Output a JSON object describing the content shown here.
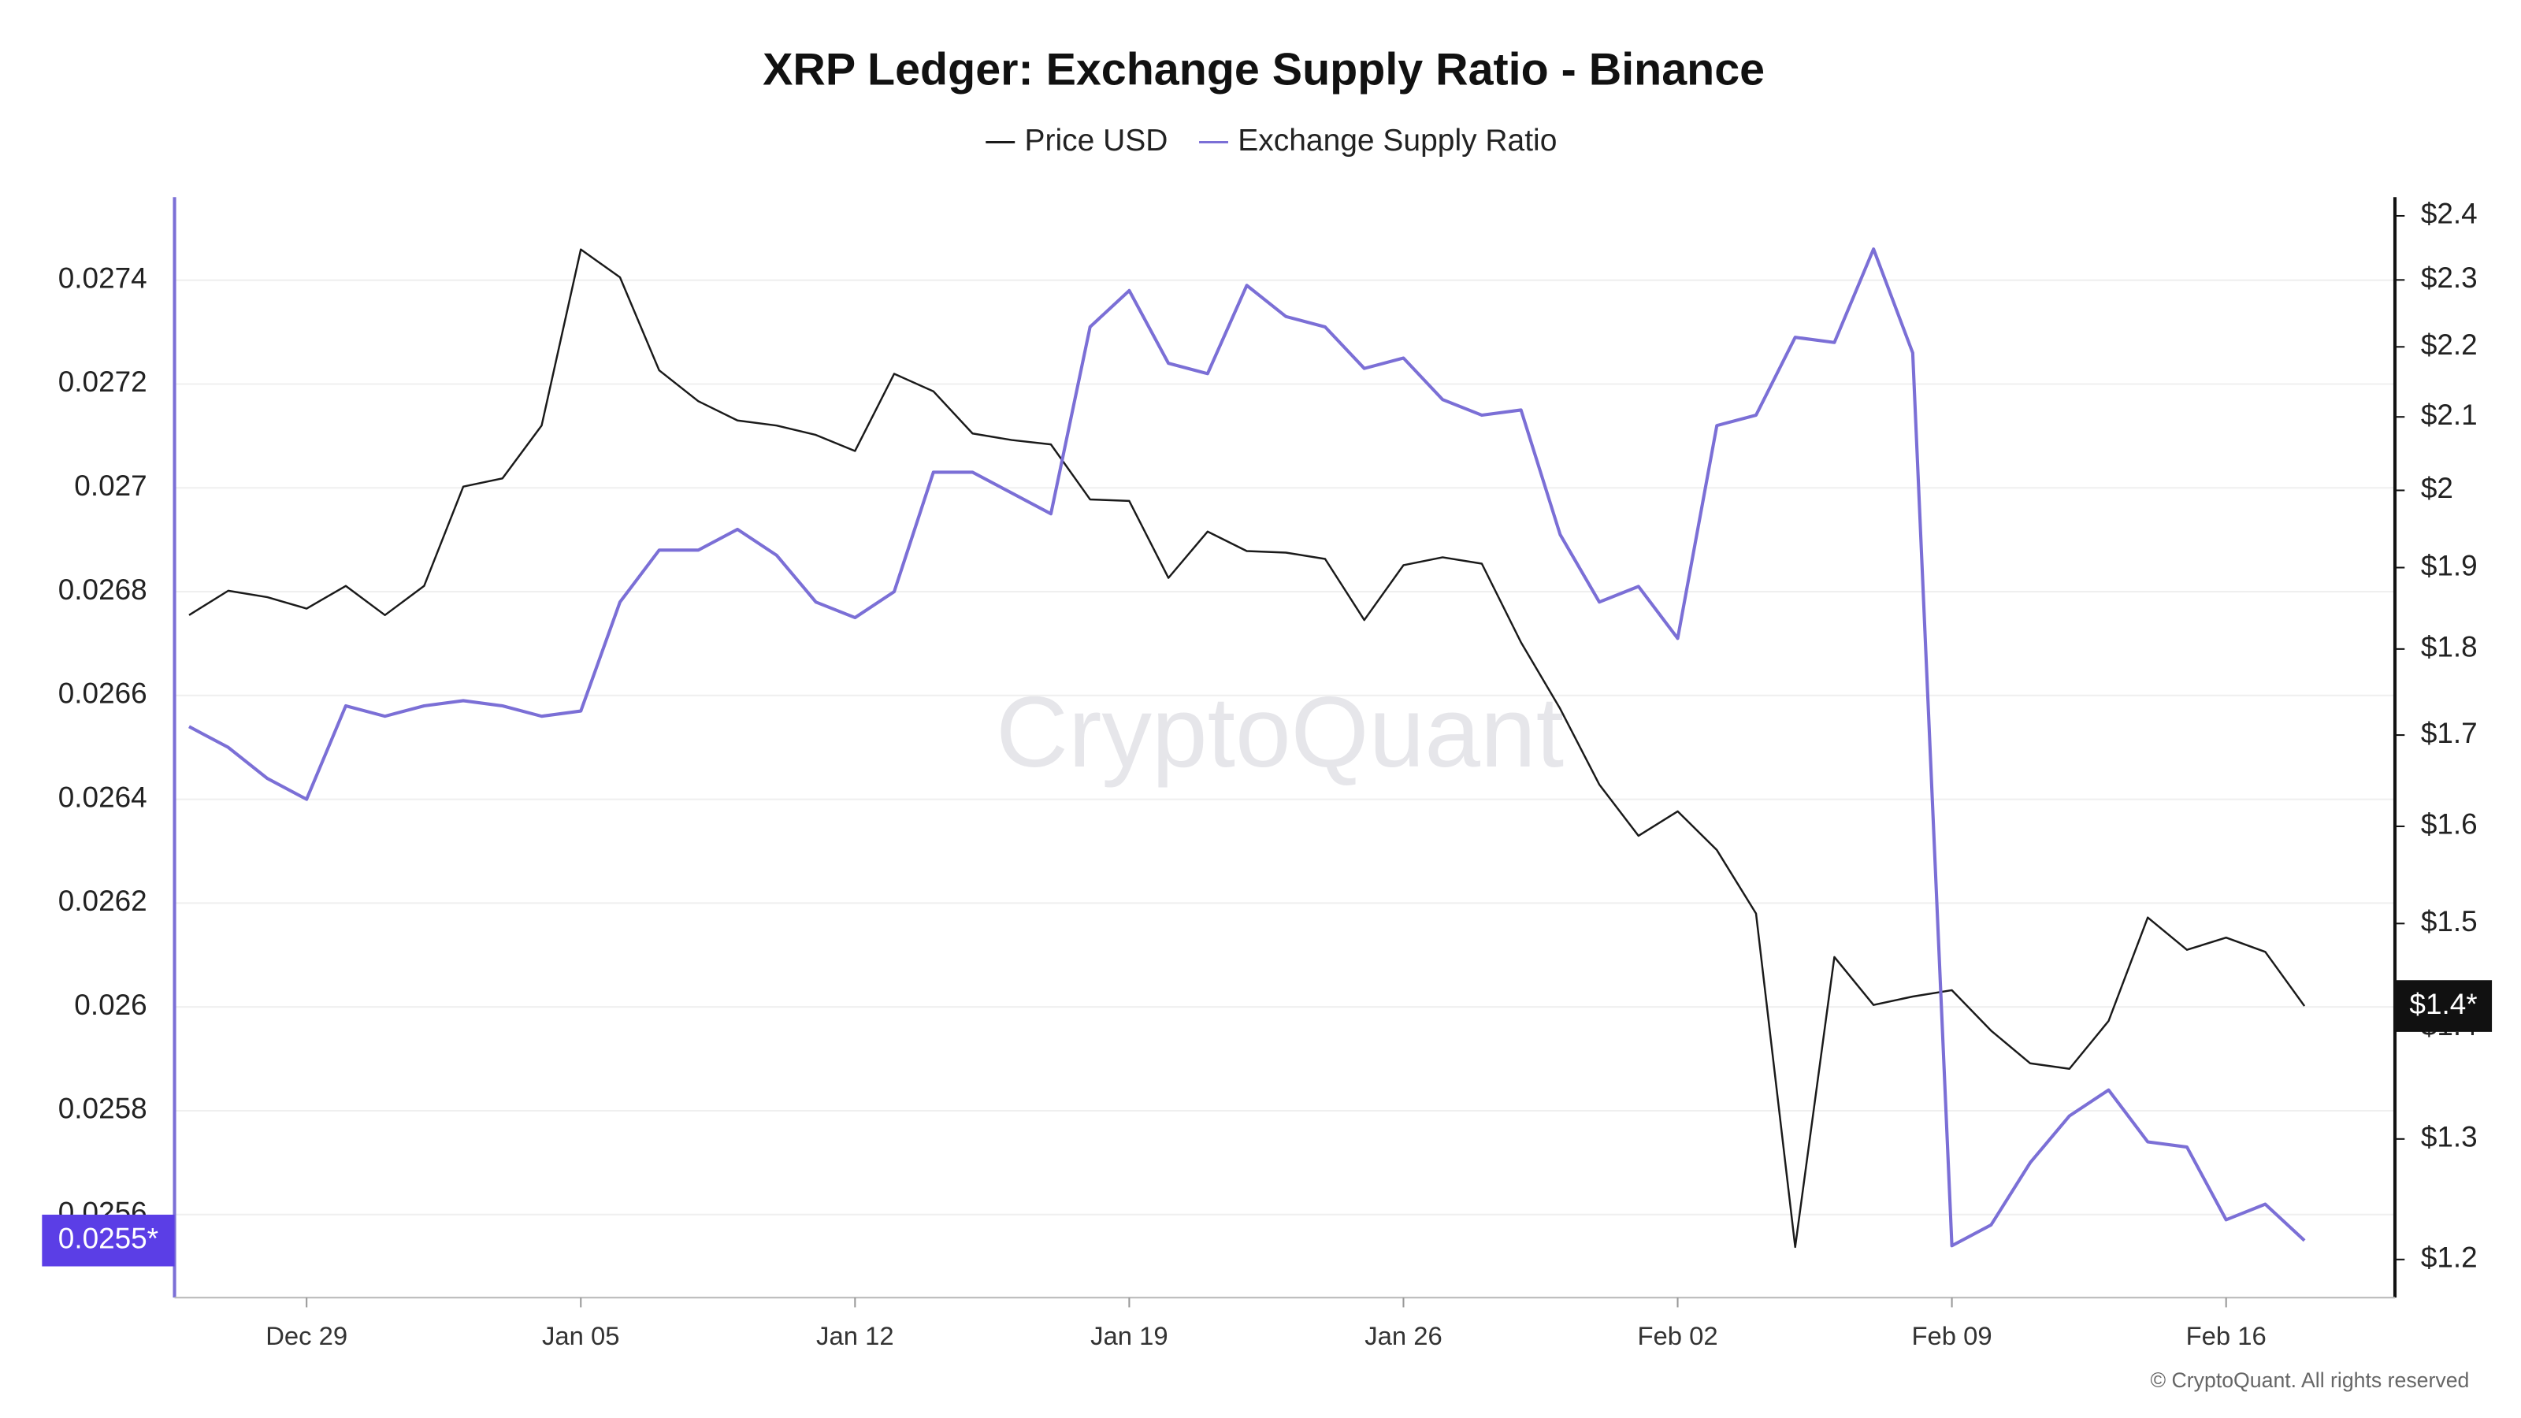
{
  "chart_data": {
    "type": "line",
    "title": "XRP Ledger: Exchange Supply Ratio - Binance",
    "watermark": "CryptoQuant",
    "copyright": "© CryptoQuant. All rights reserved",
    "categories": [
      null,
      null,
      null,
      "Dec 29",
      null,
      null,
      null,
      null,
      null,
      null,
      "Jan 05",
      null,
      null,
      null,
      null,
      null,
      null,
      "Jan 12",
      null,
      null,
      null,
      null,
      null,
      null,
      "Jan 19",
      null,
      null,
      null,
      null,
      null,
      null,
      "Jan 26",
      null,
      null,
      null,
      null,
      null,
      null,
      "Feb 02",
      null,
      null,
      null,
      null,
      null,
      null,
      "Feb 09",
      null,
      null,
      null,
      null,
      null,
      null,
      "Feb 16",
      null,
      null
    ],
    "ylim": [
      0.02544,
      0.02756
    ],
    "yticks": [
      0.0256,
      0.0258,
      0.026,
      0.0262,
      0.0264,
      0.0266,
      0.0268,
      0.027,
      0.0272,
      0.0274
    ],
    "y2lim": [
      1.17,
      2.43
    ],
    "y2scale": "log",
    "y2ticks": [
      {
        "value": 1.2,
        "label": "$1.2"
      },
      {
        "value": 1.3,
        "label": "$1.3"
      },
      {
        "value": 1.4,
        "label": "$1.4"
      },
      {
        "value": 1.5,
        "label": "$1.5"
      },
      {
        "value": 1.6,
        "label": "$1.6"
      },
      {
        "value": 1.7,
        "label": "$1.7"
      },
      {
        "value": 1.8,
        "label": "$1.8"
      },
      {
        "value": 1.9,
        "label": "$1.9"
      },
      {
        "value": 2,
        "label": "$2"
      },
      {
        "value": 2.1,
        "label": "$2.1"
      },
      {
        "value": 2.2,
        "label": "$2.2"
      },
      {
        "value": 2.3,
        "label": "$2.3"
      },
      {
        "value": 2.4,
        "label": "$2.4"
      }
    ],
    "grid": true,
    "legend": "top",
    "series": [
      {
        "name": "Price USD",
        "color": "#1a1a1a",
        "axis": "y2",
        "last_label": "$1.4*",
        "values": [
          1.841,
          1.871,
          1.863,
          1.849,
          1.877,
          1.841,
          1.877,
          2.005,
          2.016,
          2.088,
          2.347,
          2.304,
          2.166,
          2.122,
          2.095,
          2.088,
          2.075,
          2.053,
          2.161,
          2.136,
          2.077,
          2.068,
          2.062,
          1.988,
          1.986,
          1.887,
          1.946,
          1.921,
          1.919,
          1.911,
          1.835,
          1.903,
          1.913,
          1.905,
          1.808,
          1.73,
          1.645,
          1.59,
          1.616,
          1.575,
          1.51,
          1.21,
          1.467,
          1.421,
          1.429,
          1.435,
          1.397,
          1.367,
          1.362,
          1.406,
          1.506,
          1.474,
          1.486,
          1.472,
          1.42
        ]
      },
      {
        "name": "Exchange Supply Ratio",
        "color": "#7b6fd6",
        "axis": "y",
        "last_label": "0.0255*",
        "values": [
          0.02654,
          0.0265,
          0.02644,
          0.0264,
          0.02658,
          0.02656,
          0.02658,
          0.02659,
          0.02658,
          0.02656,
          0.02657,
          0.02678,
          0.02688,
          0.02688,
          0.02692,
          0.02687,
          0.02678,
          0.02675,
          0.0268,
          0.02703,
          0.02703,
          0.02699,
          0.02695,
          0.02731,
          0.02738,
          0.02724,
          0.02722,
          0.02739,
          0.02733,
          0.02731,
          0.02723,
          0.02725,
          0.02717,
          0.02714,
          0.02715,
          0.02691,
          0.02678,
          0.02681,
          0.02671,
          0.02712,
          0.02714,
          0.02729,
          0.02728,
          0.02746,
          0.02726,
          0.02554,
          0.02558,
          0.0257,
          0.02579,
          0.02584,
          0.02574,
          0.02573,
          0.02559,
          0.02562,
          0.02555
        ]
      }
    ]
  }
}
